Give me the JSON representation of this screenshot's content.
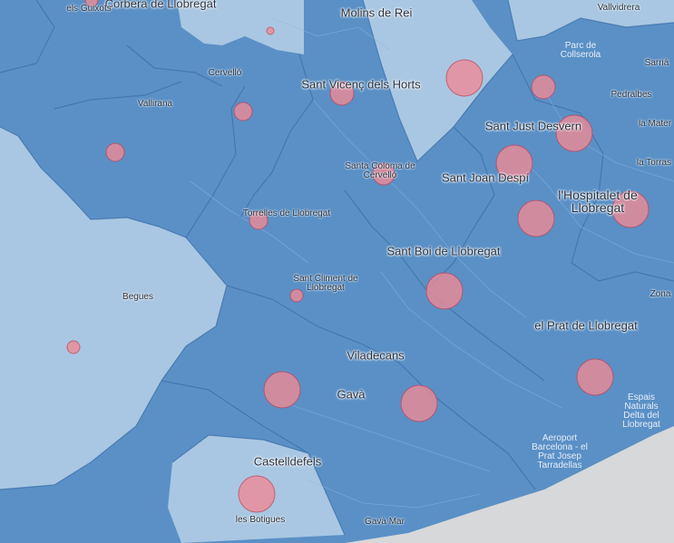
{
  "map": {
    "colors": {
      "region_dark": "#5a90c6",
      "region_light": "#a9c7e2",
      "sea": "#d6d8d9",
      "border": "#3d6fa8",
      "marker_fill": "#ee8a96",
      "marker_stroke": "#c44a5c"
    },
    "labels": {
      "corbera": "Corbera de Llobregat",
      "guixots": "els Guixots",
      "molins": "Molins de Rei",
      "vallvidrera": "Vallvidrera",
      "parc": "Parc de Collserola",
      "sarria": "Sarrià",
      "cervello": "Cervelló",
      "vallirana": "Vallirana",
      "sant_vicenc": "Sant Vicenç dels Horts",
      "pedralbes": "Pedralbes",
      "la_mater": "la Mater",
      "sant_just": "Sant Just Desvern",
      "la_torras": "la Torras",
      "santa_coloma": "Santa Coloma de Cervelló",
      "sant_joan": "Sant Joan Despí",
      "hospitalet": "l'Hospitalet de Llobregat",
      "torrelles": "Torrelles de Llobregat",
      "sant_boi": "Sant Boi de Llobregat",
      "begues": "Begues",
      "sant_climent": "Sant Climent de Llobregat",
      "zona": "Zona",
      "el_prat": "el Prat de Llobregat",
      "viladecans": "Viladecans",
      "gava": "Gavà",
      "espais": "Espais Naturals Delta del Llobregat",
      "aeroport": "Aeroport Barcelona - el Prat Josep Tarradellas",
      "castelldefels": "Castelldefels",
      "botigues": "les Botigues",
      "gava_mar": "Gavà Mar"
    },
    "markers": [
      {
        "name": "marker-corbera",
        "size": 0.18
      },
      {
        "name": "marker-molins-small",
        "size": 0.15
      },
      {
        "name": "marker-molins-nord",
        "size": 0.65
      },
      {
        "name": "marker-sant-just-nord",
        "size": 0.45
      },
      {
        "name": "marker-sant-vicenc",
        "size": 0.45
      },
      {
        "name": "marker-cervello",
        "size": 0.35
      },
      {
        "name": "marker-vallirana",
        "size": 0.35
      },
      {
        "name": "marker-sant-just",
        "size": 0.65
      },
      {
        "name": "marker-santa-coloma",
        "size": 0.4
      },
      {
        "name": "marker-sant-joan",
        "size": 0.65
      },
      {
        "name": "marker-torrelles",
        "size": 0.35
      },
      {
        "name": "marker-hospitalet-a",
        "size": 0.65
      },
      {
        "name": "marker-hospitalet-b",
        "size": 0.65
      },
      {
        "name": "marker-sant-boi",
        "size": 0.65
      },
      {
        "name": "marker-sant-climent",
        "size": 0.25
      },
      {
        "name": "marker-begues",
        "size": 0.25
      },
      {
        "name": "marker-viladecans",
        "size": 0.65
      },
      {
        "name": "marker-gava",
        "size": 0.65
      },
      {
        "name": "marker-el-prat",
        "size": 0.65
      },
      {
        "name": "marker-castelldefels",
        "size": 0.65
      }
    ]
  }
}
